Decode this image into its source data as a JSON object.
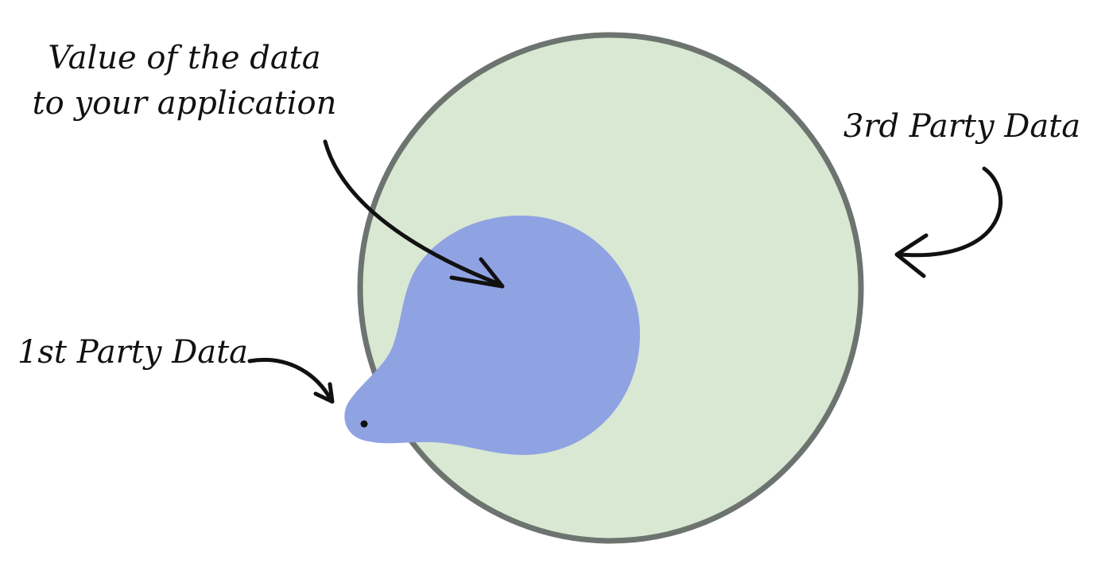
{
  "labels": {
    "value_line1": "Value of the data",
    "value_line2": "to your application",
    "third_party": "3rd Party Data",
    "first_party": "1st Party Data"
  },
  "colors": {
    "third_party_fill": "#d9e8d2",
    "third_party_stroke": "#6d7470",
    "value_fill": "#8fa3e3",
    "ink": "#111111"
  }
}
